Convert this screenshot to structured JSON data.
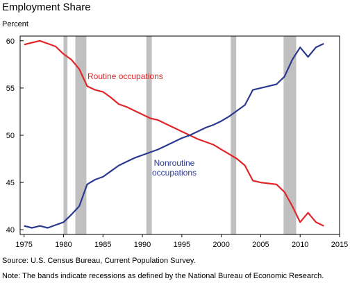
{
  "title": "Employment Share",
  "unit_label": "Percent",
  "source": "Source: U.S. Census Bureau, Current Population Survey.",
  "note": "Note: The bands indicate recessions as defined by the National Bureau of Economic Research.",
  "chart_data": {
    "type": "line",
    "xlim": [
      1974.5,
      2015
    ],
    "ylim": [
      39.5,
      60.5
    ],
    "x_ticks": [
      1975,
      1980,
      1985,
      1990,
      1995,
      2000,
      2005,
      2010,
      2015
    ],
    "y_ticks": [
      40,
      45,
      50,
      55,
      60
    ],
    "grid": false,
    "legend": "inline annotations",
    "recessions": [
      [
        1980.0,
        1980.5
      ],
      [
        1981.5,
        1982.9
      ],
      [
        1990.5,
        1991.2
      ],
      [
        2001.2,
        2001.9
      ],
      [
        2007.9,
        2009.5
      ]
    ],
    "series": [
      {
        "name": "Routine occupations",
        "label_lines": [
          "Routine occupations"
        ],
        "color": "#e0262b",
        "x": [
          1975,
          1976,
          1977,
          1978,
          1979,
          1980,
          1981,
          1982,
          1983,
          1984,
          1985,
          1986,
          1987,
          1988,
          1989,
          1990,
          1991,
          1992,
          1993,
          1994,
          1995,
          1996,
          1997,
          1998,
          1999,
          2000,
          2001,
          2002,
          2003,
          2004,
          2005,
          2006,
          2007,
          2008,
          2009,
          2010,
          2011,
          2012,
          2013
        ],
        "values": [
          59.6,
          59.8,
          60.0,
          59.7,
          59.4,
          58.6,
          58.0,
          57.0,
          55.2,
          54.8,
          54.6,
          54.0,
          53.3,
          53.0,
          52.6,
          52.2,
          51.8,
          51.6,
          51.2,
          50.8,
          50.4,
          50.0,
          49.6,
          49.3,
          49.0,
          48.5,
          48.0,
          47.5,
          46.8,
          45.2,
          45.0,
          44.9,
          44.8,
          44.0,
          42.5,
          40.8,
          41.8,
          40.8,
          40.4
        ]
      },
      {
        "name": "Nonroutine occupations",
        "label_lines": [
          "Nonroutine",
          "occupations"
        ],
        "color": "#2b3990",
        "x": [
          1975,
          1976,
          1977,
          1978,
          1979,
          1980,
          1981,
          1982,
          1983,
          1984,
          1985,
          1986,
          1987,
          1988,
          1989,
          1990,
          1991,
          1992,
          1993,
          1994,
          1995,
          1996,
          1997,
          1998,
          1999,
          2000,
          2001,
          2002,
          2003,
          2004,
          2005,
          2006,
          2007,
          2008,
          2009,
          2010,
          2011,
          2012,
          2013
        ],
        "values": [
          40.4,
          40.2,
          40.4,
          40.2,
          40.5,
          40.8,
          41.6,
          42.5,
          44.8,
          45.3,
          45.6,
          46.2,
          46.8,
          47.2,
          47.6,
          47.9,
          48.2,
          48.5,
          48.9,
          49.3,
          49.7,
          50.0,
          50.4,
          50.8,
          51.1,
          51.5,
          52.0,
          52.6,
          53.2,
          54.8,
          55.0,
          55.2,
          55.4,
          56.2,
          58.0,
          59.3,
          58.3,
          59.3,
          59.7
        ]
      }
    ]
  }
}
